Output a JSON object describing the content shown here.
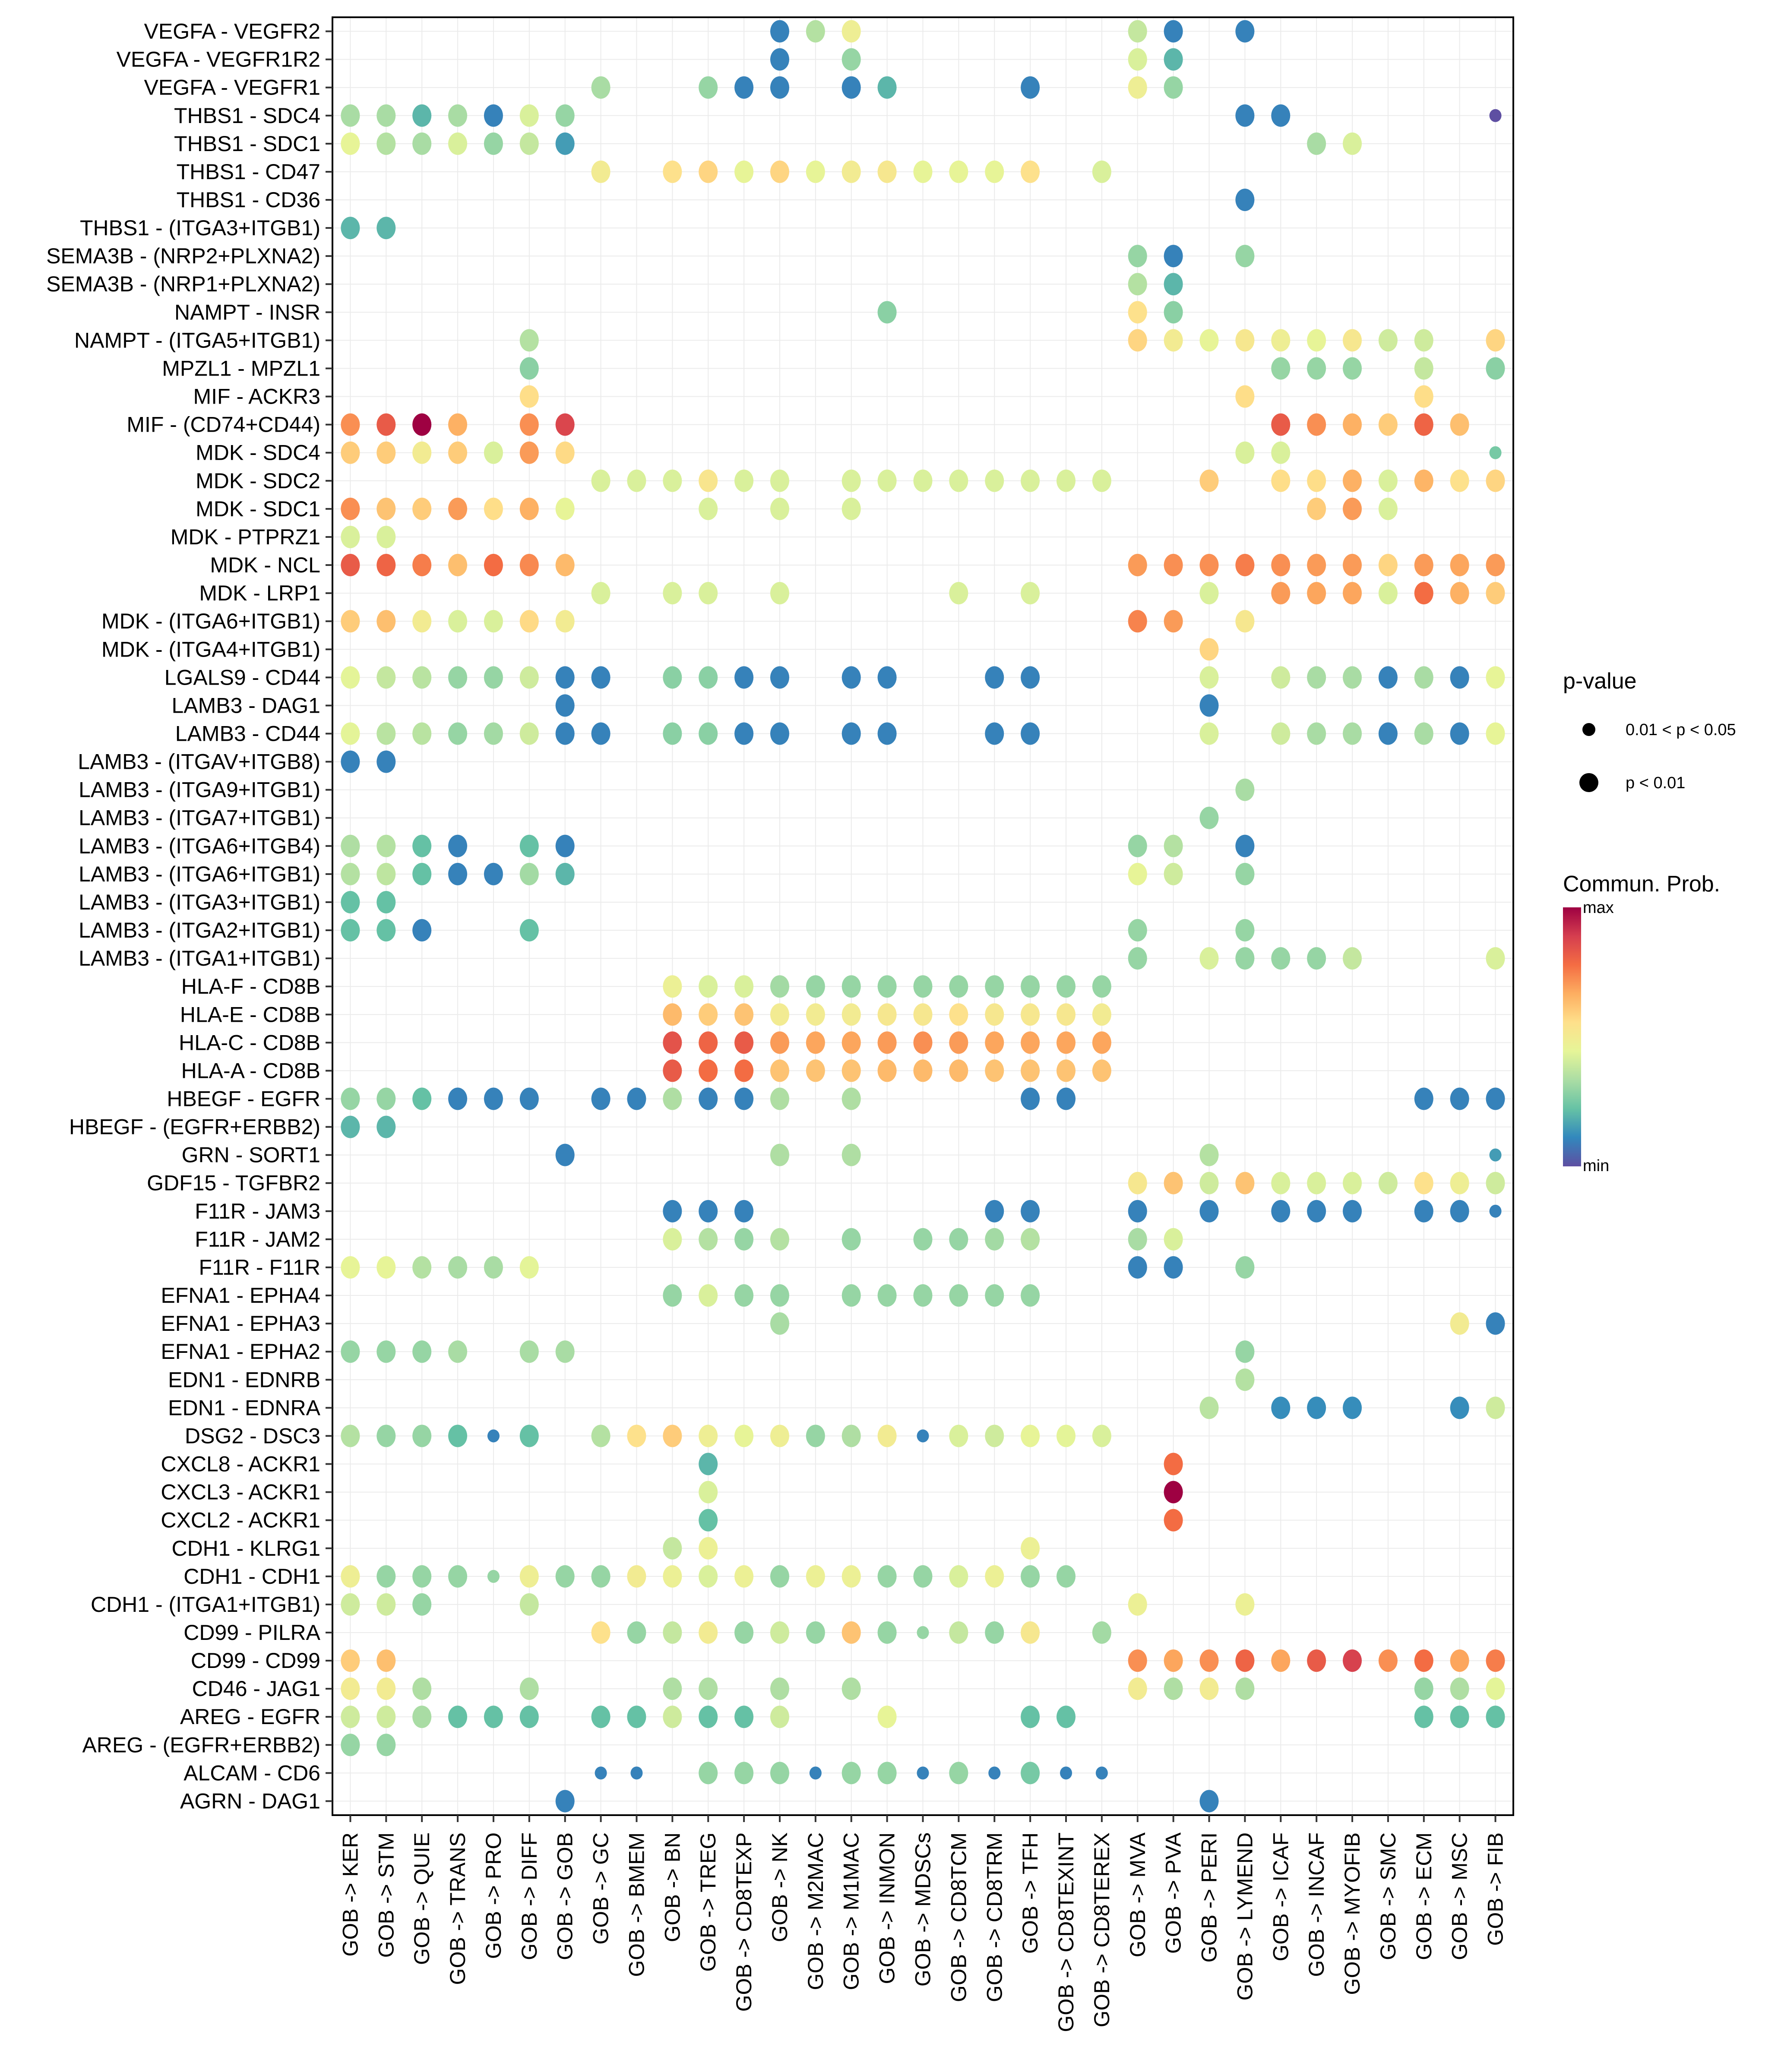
{
  "chart_data": {
    "type": "scatter",
    "subtype": "dot-plot",
    "title": "",
    "xlabel": "",
    "ylabel": "",
    "grid": true,
    "x_categories": [
      "GOB -> KER",
      "GOB -> STM",
      "GOB -> QUIE",
      "GOB -> TRANS",
      "GOB -> PRO",
      "GOB -> DIFF",
      "GOB -> GOB",
      "GOB -> GC",
      "GOB -> BMEM",
      "GOB -> BN",
      "GOB -> TREG",
      "GOB -> CD8TEXP",
      "GOB -> NK",
      "GOB -> M2MAC",
      "GOB -> M1MAC",
      "GOB -> INMON",
      "GOB -> MDSCs",
      "GOB -> CD8TCM",
      "GOB -> CD8TRM",
      "GOB -> TFH",
      "GOB -> CD8TEXINT",
      "GOB -> CD8TEREX",
      "GOB -> MVA",
      "GOB -> PVA",
      "GOB -> PERI",
      "GOB -> LYMEND",
      "GOB -> ICAF",
      "GOB -> INCAF",
      "GOB -> MYOFIB",
      "GOB -> SMC",
      "GOB -> ECM",
      "GOB -> MSC",
      "GOB -> FIB"
    ],
    "value_encoding": "Each row lists 33 tokens (one per x category). '-' = no dot; number = normalized communication probability (0 = min, 1 = max); suffix 's' = 0.01 < p < 0.05 (small dot), otherwise p < 0.01 (large dot).",
    "rows": [
      {
        "label": "VEGFA - VEGFR2",
        "values": "- - - - - - - - - - - - 0.1 0.35 0.48 - - - - - - - 0.38 0.1 - 0.1 - - - - - - -"
      },
      {
        "label": "VEGFA - VEGFR1R2",
        "values": "- - - - - - - - - - - - 0.1 - 0.3 - - - - - - - 0.42 0.2 - - - - - - - - -"
      },
      {
        "label": "VEGFA - VEGFR1",
        "values": "- - - - - - - 0.33 - - 0.3 0.1 0.1 - 0.1 0.2 - - - 0.1 - - 0.48 0.3 - - - - - - - - -"
      },
      {
        "label": "THBS1 - SDC4",
        "values": "0.33 0.33 0.2 0.33 0.1 0.42 0.3 - - - - - - - - - - - - - - - - - - 0.1 0.1 - - - - - 0.0s"
      },
      {
        "label": "THBS1 - SDC1",
        "values": "0.45 0.35 0.33 0.42 0.3 0.38 0.15 - - - - - - - - - - - - - - - - - - - - 0.33 0.42 - - - -"
      },
      {
        "label": "THBS1 - CD47",
        "values": "- - - - - - - 0.5 - 0.55 0.58 0.45 0.58 0.45 0.5 0.52 0.45 0.45 0.45 0.55 - 0.42 - - - - - - - - - - -"
      },
      {
        "label": "THBS1 - CD36",
        "values": "- - - - - - - - - - - - - - - - - - - - - - - - - 0.1 - - - - - - -"
      },
      {
        "label": "THBS1 - (ITGA3+ITGB1)",
        "values": "0.2 0.2 - - - - - - - - - - - - - - - - - - - - - - - - - - - - - - -"
      },
      {
        "label": "SEMA3B - (NRP2+PLXNA2)",
        "values": "- - - - - - - - - - - - - - - - - - - - - - 0.3 0.1 - 0.3 - - - - - - -"
      },
      {
        "label": "SEMA3B - (NRP1+PLXNA2)",
        "values": "- - - - - - - - - - - - - - - - - - - - - - 0.35 0.2 - - - - - - - - -"
      },
      {
        "label": "NAMPT - INSR",
        "values": "- - - - - - - - - - - - - - - 0.28 - - - - - - 0.55 0.28 - - - - - - - - -"
      },
      {
        "label": "NAMPT - (ITGA5+ITGB1)",
        "values": "- - - - - 0.35 - - - - - - - - - - - - - - - - 0.58 0.5 0.45 0.52 0.48 0.45 0.52 0.4 0.4 - 0.58"
      },
      {
        "label": "MPZL1 - MPZL1",
        "values": "- - - - - 0.28 - - - - - - - - - - - - - - - - - - - - 0.3 0.3 0.3 - 0.38 - 0.28"
      },
      {
        "label": "MIF - ACKR3",
        "values": "- - - - - 0.56 - - - - - - - - - - - - - - - - - - - 0.56 - - - - 0.56 - -"
      },
      {
        "label": "MIF - (CD74+CD44)",
        "values": "0.72 0.82 1.0 0.66 - 0.72 0.87 - - - - - - - - - - - - - - - - - - - 0.82 0.72 0.66 0.6 0.8 0.63 -"
      },
      {
        "label": "MDK - SDC4",
        "values": "0.6 0.6 0.5 0.6 0.42 0.7 0.57 - - - - - - - - - - - - - - - - - - 0.42 0.42 - - - - - 0.25s"
      },
      {
        "label": "MDK - SDC2",
        "values": "- - - - - - - 0.42 0.42 0.42 0.53 0.42 0.42 - 0.42 0.42 0.42 0.42 0.42 0.42 0.42 0.42 - - 0.6 - 0.56 0.56 0.66 0.42 0.65 0.55 0.58"
      },
      {
        "label": "MDK - SDC1",
        "values": "0.72 0.62 0.6 0.7 0.56 0.66 0.45 - - - 0.42 - 0.42 - 0.42 - - - - - - - - - - - - 0.6 0.7 0.42 - - -"
      },
      {
        "label": "MDK - PTPRZ1",
        "values": "0.42 0.42 - - - - - - - - - - - - - - - - - - - - - - - - - - - - - - -"
      },
      {
        "label": "MDK - NCL",
        "values": "0.82 0.8 0.75 0.63 0.78 0.73 0.64 - - - - - - - - - - - - - - - 0.7 0.72 0.72 0.75 0.72 0.7 0.7 0.58 0.7 0.68 0.7"
      },
      {
        "label": "MDK - LRP1",
        "values": "- - - - - - - 0.42 - 0.42 0.42 - 0.42 - - - - 0.42 - 0.42 - - - - 0.42 - 0.7 0.68 0.68 0.42 0.78 0.66 0.6"
      },
      {
        "label": "MDK - (ITGA6+ITGB1)",
        "values": "0.6 0.63 0.5 0.42 0.42 0.57 0.5 - - - - - - - - - - - - - - - 0.74 0.7 - 0.52 - - - - - - -"
      },
      {
        "label": "MDK - (ITGA4+ITGB1)",
        "values": "- - - - - - - - - - - - - - - - - - - - - - - - 0.58 - - - - - - - -"
      },
      {
        "label": "LGALS9 - CD44",
        "values": "0.44 0.38 0.36 0.3 0.3 0.4 0.1 0.1 - 0.28 0.28 0.1 0.1 - 0.1 0.1 - - 0.1 0.1 - - - - 0.42 - 0.4 0.33 0.33 0.1 0.33 0.1 0.45"
      },
      {
        "label": "LAMB3 - DAG1",
        "values": "- - - - - - 0.1 - - - - - - - - - - - - - - - - - 0.1 - - - - - - - -"
      },
      {
        "label": "LAMB3 - CD44",
        "values": "0.44 0.36 0.36 0.3 0.32 0.4 0.1 0.1 - 0.28 0.28 0.1 0.1 - 0.1 0.1 - - 0.1 0.1 - - - - 0.42 - 0.4 0.33 0.33 0.1 0.33 0.1 0.45"
      },
      {
        "label": "LAMB3 - (ITGAV+ITGB8)",
        "values": "0.1 0.1 - - - - - - - - - - - - - - - - - - - - - - - - - - - - - - -"
      },
      {
        "label": "LAMB3 - (ITGA9+ITGB1)",
        "values": "- - - - - - - - - - - - - - - - - - - - - - - - - 0.33 - - - - - - -"
      },
      {
        "label": "LAMB3 - (ITGA7+ITGB1)",
        "values": "- - - - - - - - - - - - - - - - - - - - - - - - 0.3 - - - - - - - -"
      },
      {
        "label": "LAMB3 - (ITGA6+ITGB4)",
        "values": "0.34 0.35 0.22 0.1 - 0.22 0.1 - - - - - - - - - - - - - - - 0.3 0.35 - 0.1 - - - - - - -"
      },
      {
        "label": "LAMB3 - (ITGA6+ITGB1)",
        "values": "0.35 0.37 0.22 0.1 0.1 0.32 0.2 - - - - - - - - - - - - - - - 0.45 0.4 - 0.3 - - - - - - -"
      },
      {
        "label": "LAMB3 - (ITGA3+ITGB1)",
        "values": "0.22 0.22 - - - - - - - - - - - - - - - - - - - - - - - - - - - - - - -"
      },
      {
        "label": "LAMB3 - (ITGA2+ITGB1)",
        "values": "0.22 0.22 0.1 - - 0.22 - - - - - - - - - - - - - - - - 0.3 - - 0.3 - - - - - - -"
      },
      {
        "label": "LAMB3 - (ITGA1+ITGB1)",
        "values": "- - - - - - - - - - - - - - - - - - - - - - 0.3 - 0.42 0.3 0.3 0.3 0.38 - - - 0.42"
      },
      {
        "label": "HLA-F - CD8B",
        "values": "- - - - - - - - - 0.47 0.42 0.42 0.32 0.3 0.3 0.3 0.3 0.3 0.3 0.3 0.3 0.3 - - - - - - - - - - -"
      },
      {
        "label": "HLA-E - CD8B",
        "values": "- - - - - - - - - 0.64 0.6 0.62 0.5 0.5 0.5 0.52 0.52 0.55 0.52 0.52 0.52 0.5 - - - - - - - - - - -"
      },
      {
        "label": "HLA-C - CD8B",
        "values": "- - - - - - - - - 0.84 0.8 0.82 0.7 0.68 0.68 0.7 0.72 0.7 0.68 0.68 0.68 0.68 - - - - - - - - - - -"
      },
      {
        "label": "HLA-A - CD8B",
        "values": "- - - - - - - - - 0.82 0.78 0.78 0.62 0.62 0.62 0.64 0.64 0.64 0.62 0.62 0.62 0.62 - - - - - - - - - - -"
      },
      {
        "label": "HBEGF - EGFR",
        "values": "0.3 0.3 0.22 0.1 0.1 0.1 - 0.1 0.1 0.34 0.1 0.1 0.34 - 0.34 - - - - 0.1 0.1 - - - - - - - - - 0.1 0.1 0.1"
      },
      {
        "label": "HBEGF - (EGFR+ERBB2)",
        "values": "0.2 0.2 - - - - - - - - - - - - - - - - - - - - - - - - - - - - - - -"
      },
      {
        "label": "GRN - SORT1",
        "values": "- - - - - - 0.1 - - - - - 0.34 - 0.34 - - - - - - - - - 0.35 - - - - - - - 0.15s"
      },
      {
        "label": "GDF15 - TGFBR2",
        "values": "- - - - - - - - - - - - - - - - - - - - - - 0.52 0.62 0.4 0.62 0.42 0.42 0.42 0.4 0.55 0.48 0.4"
      },
      {
        "label": "F11R - JAM3",
        "values": "- - - - - - - - - 0.1 0.1 0.1 - - - - - - 0.1 0.1 - - 0.1 - 0.1 - 0.1 0.1 0.1 - 0.1 0.1 0.1s"
      },
      {
        "label": "F11R - JAM2",
        "values": "- - - - - - - - - 0.42 0.35 0.3 0.35 - 0.3 - 0.3 0.3 0.32 0.35 - - 0.33 0.42 - - - - - - - - -"
      },
      {
        "label": "F11R - F11R",
        "values": "0.45 0.45 0.35 0.33 0.33 0.44 - - - - - - - - - - - - - - - - 0.1 0.1 - 0.3 - - - - - - -"
      },
      {
        "label": "EFNA1 - EPHA4",
        "values": "- - - - - - - - - 0.3 0.42 0.3 0.3 - 0.3 0.3 0.3 0.3 0.3 0.3 - - - - - - - - - - - - -"
      },
      {
        "label": "EFNA1 - EPHA3",
        "values": "- - - - - - - - - - - - 0.33 - - - - - - - - - - - - - - - - - - 0.5 0.1"
      },
      {
        "label": "EFNA1 - EPHA2",
        "values": "0.3 0.3 0.3 0.33 - 0.33 0.33 - - - - - - - - - - - - - - - - - - 0.3 - - - - - - -"
      },
      {
        "label": "EDN1 - EDNRB",
        "values": "- - - - - - - - - - - - - - - - - - - - - - - - - 0.35 - - - - - - -"
      },
      {
        "label": "EDN1 - EDNRA",
        "values": "- - - - - - - - - - - - - - - - - - - - - - - - 0.36 - 0.12 0.12 0.12 - - 0.12 0.4"
      },
      {
        "label": "DSG2 - DSC3",
        "values": "0.35 0.3 0.3 0.22 0.1s 0.22 - 0.35 0.55 0.6 0.48 0.45 0.48 0.3 0.34 0.5 0.1s 0.42 0.4 0.45 0.44 0.42 - - - - - - - - - - -"
      },
      {
        "label": "CXCL8 - ACKR1",
        "values": "- - - - - - - - - - 0.2 - - - - - - - - - - - - 0.78 - - - - - - - - -"
      },
      {
        "label": "CXCL3 - ACKR1",
        "values": "- - - - - - - - - - 0.42 - - - - - - - - - - - - 1.0 - - - - - - - - -"
      },
      {
        "label": "CXCL2 - ACKR1",
        "values": "- - - - - - - - - - 0.22 - - - - - - - - - - - - 0.78 - - - - - - - - -"
      },
      {
        "label": "CDH1 - KLRG1",
        "values": "- - - - - - - - - 0.38 0.47 - - - - - - - - 0.47 - - - - - - - - - - - - -"
      },
      {
        "label": "CDH1 - CDH1",
        "values": "0.48 0.3 0.3 0.3 0.3s 0.48 0.3 0.3 0.5 0.47 0.42 0.47 0.3 0.47 0.47 0.3 0.3 0.42 0.47 0.3 0.3 - - - - - - - - - - - -"
      },
      {
        "label": "CDH1 - (ITGA1+ITGB1)",
        "values": "0.4 0.4 0.3 - - 0.38 - - - - - - - - - - - - - - - - 0.47 - - 0.47 - - - - - - -"
      },
      {
        "label": "CD99 - PILRA",
        "values": "- - - - - - - 0.55 0.3 0.38 0.5 0.3 0.4 0.3 0.62 0.3 0.3s 0.38 0.3 0.52 - 0.32 - - - - - - - - - - -"
      },
      {
        "label": "CD99 - CD99",
        "values": "0.6 0.63 - - - - - - - - - - - - - - - - - - - - 0.72 0.68 0.72 0.8 0.68 0.82 0.88 0.72 0.78 0.68 0.75"
      },
      {
        "label": "CD46 - JAG1",
        "values": "0.5 0.5 0.34 - - 0.34 - - - 0.34 0.34 - 0.34 - 0.34 - - - - - - - 0.5 0.34 0.5 0.34 - - - - 0.3 0.34 0.44"
      },
      {
        "label": "AREG - EGFR",
        "values": "0.4 0.4 0.33 0.22 0.22 0.22 - 0.22 0.22 0.4 0.22 0.22 0.4 - - 0.45 - - - 0.22 0.22 - - - - - - - - - 0.22 0.22 0.22"
      },
      {
        "label": "AREG - (EGFR+ERBB2)",
        "values": "0.3 0.3 - - - - - - - - - - - - - - - - - - - - - - - - - - - - - - -"
      },
      {
        "label": "ALCAM - CD6",
        "values": "- - - - - - - 0.1s 0.1s - 0.3 0.3 0.3 0.1s 0.3 0.3 0.1s 0.3 0.1s 0.25 0.1s 0.1s - - - - - - - - - - -"
      },
      {
        "label": "AGRN - DAG1",
        "values": "- - - - - - 0.1 - - - - - - - - - - - - - - - - - 0.1 - - - - - - - -"
      }
    ],
    "legend": {
      "size": {
        "title": "p-value",
        "entries": [
          {
            "label": "0.01 < p < 0.05",
            "size": "small"
          },
          {
            "label": "p < 0.01",
            "size": "large"
          }
        ]
      },
      "color": {
        "title": "Commun. Prob.",
        "max_label": "max",
        "min_label": "min",
        "palette": [
          "#5e4fa2",
          "#3288bd",
          "#66c2a5",
          "#abdda4",
          "#e6f598",
          "#fee08b",
          "#fdae61",
          "#f46d43",
          "#d53e4f",
          "#9e0142"
        ]
      },
      "placement": "right"
    }
  }
}
